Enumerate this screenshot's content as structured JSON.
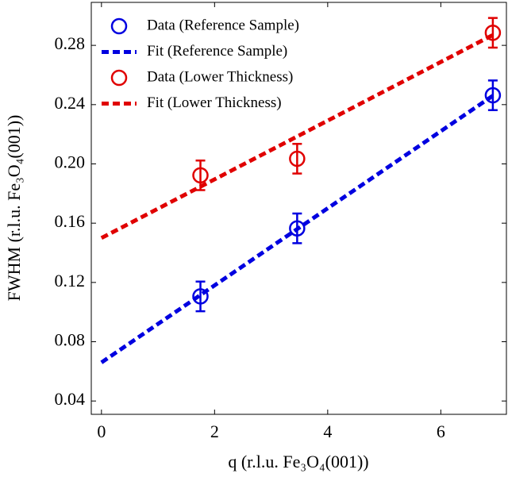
{
  "chart_data": {
    "type": "scatter",
    "xlabel": "q (r.l.u. Fe₃O₄(001))",
    "ylabel": "FWHM (r.l.u. Fe₃O₄(001))",
    "xlim": [
      -0.18,
      7.16
    ],
    "ylim": [
      0.031,
      0.309
    ],
    "xticks": [
      0,
      2,
      4,
      6
    ],
    "yticks": [
      0.04,
      0.08,
      0.12,
      0.16,
      {
        "value": 0.2,
        "label": "0.20"
      },
      0.24,
      0.28
    ],
    "legend": "upper left",
    "series": [
      {
        "name": "Data (Reference Sample)",
        "color": "#0000e0",
        "style": "markers",
        "x": [
          1.75,
          3.46,
          6.92
        ],
        "values": [
          0.1106,
          0.1565,
          0.2463
        ],
        "errors": [
          0.01,
          0.01,
          0.01
        ]
      },
      {
        "name": "Fit (Reference Sample)",
        "color": "#0000e0",
        "style": "dashed",
        "x": [
          0,
          6.92
        ],
        "values": [
          0.066,
          0.246
        ]
      },
      {
        "name": "Data (Lower Thickness)",
        "color": "#e00000",
        "style": "markers",
        "x": [
          1.75,
          3.46,
          6.92
        ],
        "values": [
          0.1923,
          0.2035,
          0.2885
        ],
        "errors": [
          0.01,
          0.01,
          0.01
        ]
      },
      {
        "name": "Fit (Lower Thickness)",
        "color": "#e00000",
        "style": "dashed",
        "x": [
          0,
          6.92
        ],
        "values": [
          0.15,
          0.287
        ]
      }
    ]
  }
}
